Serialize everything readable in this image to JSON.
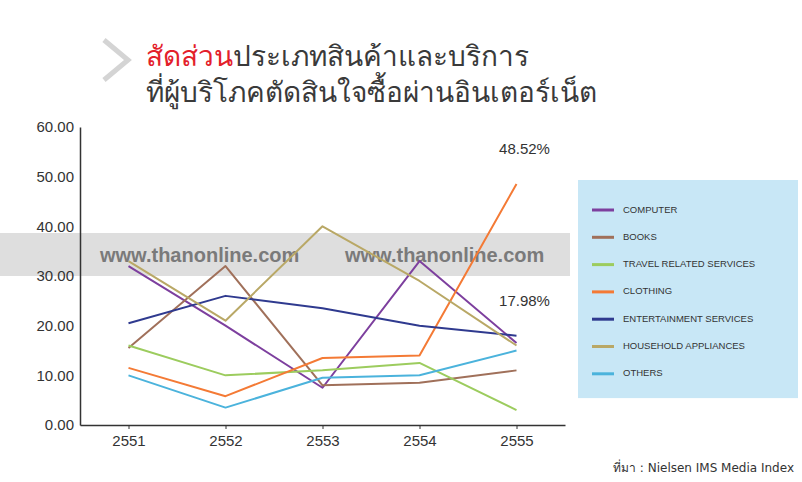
{
  "chart_data": {
    "type": "line",
    "title": [
      [
        "สัดส่วน",
        "ประเภทสินค้าและบริการ"
      ],
      [
        "ที่ผู้บริโภคตัดสินใจซื้อผ่านอินเตอร์เน็ต"
      ]
    ],
    "categories": [
      "2551",
      "2552",
      "2553",
      "2554",
      "2555"
    ],
    "series": [
      {
        "name": "COMPUTER",
        "color": "#7d3f9e",
        "values": [
          32.0,
          20.0,
          7.5,
          33.0,
          16.5
        ]
      },
      {
        "name": "BOOKS",
        "color": "#a0705a",
        "values": [
          15.5,
          32.0,
          8.0,
          8.5,
          11.0
        ]
      },
      {
        "name": "TRAVEL RELATED SERVICES",
        "color": "#9ccc5e",
        "values": [
          16.0,
          10.0,
          11.0,
          12.5,
          3.0
        ]
      },
      {
        "name": "CLOTHING",
        "color": "#f47a35",
        "values": [
          11.5,
          5.8,
          13.5,
          14.0,
          48.52
        ]
      },
      {
        "name": "ENTERTAINMENT SERVICES",
        "color": "#2f3a8f",
        "values": [
          20.5,
          26.0,
          23.5,
          20.0,
          17.98
        ]
      },
      {
        "name": "HOUSEHOLD APPLIANCES",
        "color": "#b9a866",
        "values": [
          33.0,
          21.0,
          40.0,
          29.0,
          16.0
        ]
      },
      {
        "name": "OTHERS",
        "color": "#4bb3dc",
        "values": [
          10.0,
          3.5,
          9.5,
          10.0,
          15.0
        ]
      }
    ],
    "ylim": [
      0,
      60
    ],
    "yticks": [
      {
        "value": 0,
        "label": "0.00"
      },
      {
        "value": 10,
        "label": "10.00"
      },
      {
        "value": 20,
        "label": "20.00"
      },
      {
        "value": 30,
        "label": "30.00"
      },
      {
        "value": 40,
        "label": "40.00"
      },
      {
        "value": 50,
        "label": "50.00"
      },
      {
        "value": 60,
        "label": "60.00"
      }
    ],
    "annotations": [
      {
        "text": "48.52%",
        "x": "2555",
        "y": 48.52
      },
      {
        "text": "17.98%",
        "x": "2555",
        "y": 17.98
      }
    ],
    "watermark": [
      "www.thanonline.com",
      "www.thanonline.com"
    ],
    "source": "ที่มา : Nielsen IMS Media Index",
    "grid": false,
    "legend": "right"
  }
}
